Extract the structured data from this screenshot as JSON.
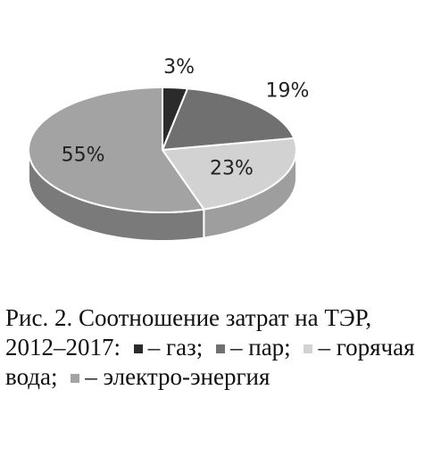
{
  "chart_data": {
    "type": "pie3d",
    "title": "Рис. 2. Соотношение затрат на ТЭР, 2012–2017:",
    "series": [
      {
        "name": "– газ;",
        "color": "#2b2b2b"
      },
      {
        "name": "– пар;",
        "color": "#707070"
      },
      {
        "name": "– горячая вода;",
        "color": "#d2d2d2"
      },
      {
        "name": "– электро-энергия",
        "color": "#a3a3a3"
      }
    ],
    "values": [
      3,
      19,
      23,
      55
    ],
    "value_labels": [
      "3%",
      "19%",
      "23%",
      "55%"
    ]
  }
}
